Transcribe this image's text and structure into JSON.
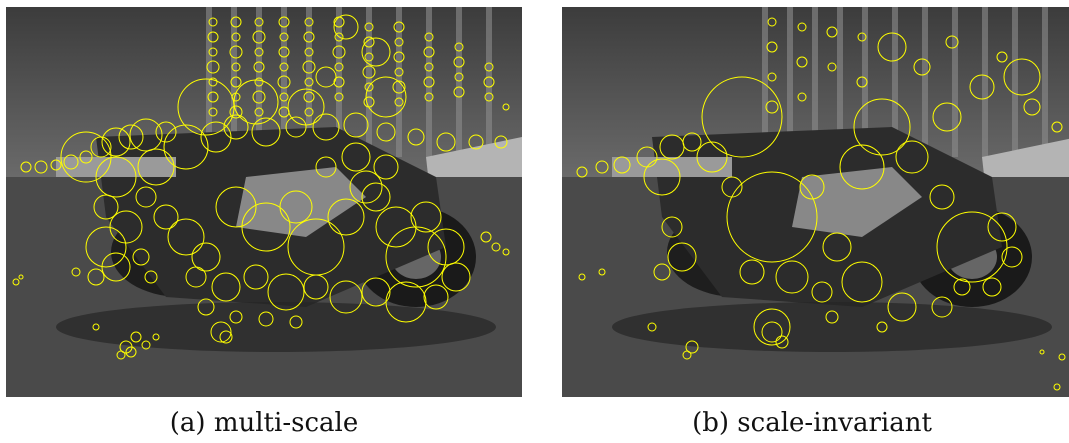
{
  "figure": {
    "panels": [
      {
        "caption": "(a) multi-scale",
        "marker_color": "#ffff00",
        "density": "high"
      },
      {
        "caption": "(b) scale-invariant",
        "marker_color": "#ffff00",
        "density": "medium"
      }
    ]
  }
}
